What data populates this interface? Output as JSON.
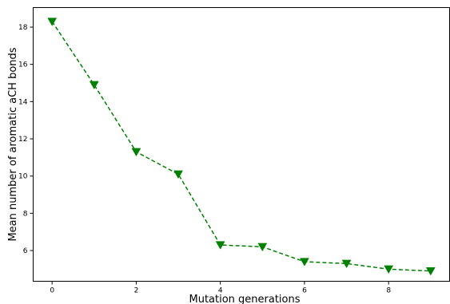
{
  "chart_data": {
    "type": "line",
    "title": "",
    "xlabel": "Mutation generations",
    "ylabel": "Mean number of aromatic aCH bonds",
    "xlim": [
      -0.45,
      9.45
    ],
    "ylim": [
      4.35,
      19.05
    ],
    "xticks": [
      0,
      2,
      4,
      6,
      8
    ],
    "yticks": [
      6,
      8,
      10,
      12,
      14,
      16,
      18
    ],
    "grid": false,
    "legend": "none",
    "series": [
      {
        "color": "#008000",
        "line_style": "dashed",
        "marker": "triangle-down",
        "x": [
          0,
          1,
          2,
          3,
          4,
          5,
          6,
          7,
          8,
          9
        ],
        "y": [
          18.3,
          14.9,
          11.3,
          10.1,
          6.3,
          6.2,
          5.4,
          5.3,
          5.0,
          4.9
        ]
      }
    ]
  }
}
